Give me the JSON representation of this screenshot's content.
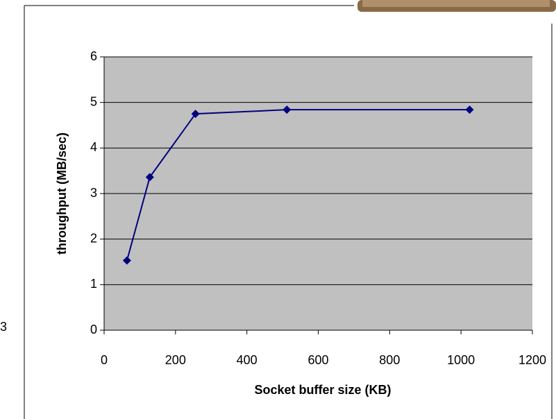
{
  "chart_data": {
    "type": "line",
    "x_label": "Socket buffer size (KB)",
    "y_label": "throughput (MB/sec)",
    "x": [
      64,
      128,
      256,
      512,
      1024
    ],
    "series": [
      {
        "color": "#000080",
        "values": [
          1.53,
          3.36,
          4.75,
          4.84,
          4.84
        ]
      }
    ],
    "xlim": [
      0,
      1200
    ],
    "xticks": [
      0,
      200,
      400,
      600,
      800,
      1000,
      1200
    ],
    "ylim": [
      0,
      6
    ],
    "yticks": [
      0,
      1,
      2,
      3,
      4,
      5,
      6
    ],
    "grid": true,
    "plot_background": "#c0c0c0",
    "marker": "diamond"
  },
  "edge_fragment": "3"
}
